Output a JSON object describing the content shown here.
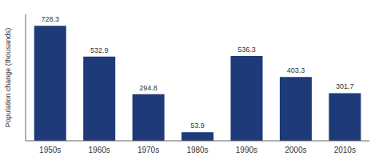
{
  "chart_data": {
    "type": "bar",
    "ylabel": "Population change (thousands)",
    "categories": [
      "1950s",
      "1960s",
      "1970s",
      "1980s",
      "1990s",
      "2000s",
      "2010s"
    ],
    "values": [
      728.3,
      532.9,
      294.8,
      53.9,
      536.3,
      403.3,
      301.7
    ],
    "color": "#1e3a78",
    "ylim": [
      0,
      800
    ],
    "grid": false,
    "data_labels": true,
    "tick_labels": "x"
  }
}
